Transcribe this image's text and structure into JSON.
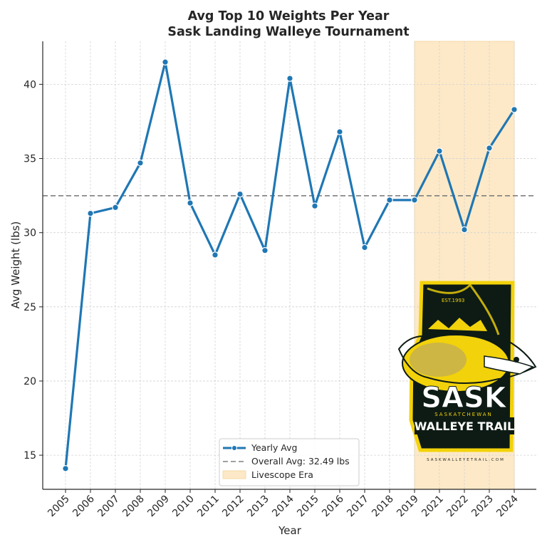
{
  "chart_data": {
    "type": "line",
    "title_line1": "Avg Top 10 Weights Per Year",
    "title_line2": "Sask Landing Walleye Tournament",
    "xlabel": "Year",
    "ylabel": "Avg Weight (lbs)",
    "categories": [
      "2005",
      "2006",
      "2007",
      "2008",
      "2009",
      "2010",
      "2011",
      "2012",
      "2013",
      "2014",
      "2015",
      "2016",
      "2017",
      "2018",
      "2019",
      "2021",
      "2022",
      "2023",
      "2024"
    ],
    "series": [
      {
        "name": "Yearly Avg",
        "color": "#1f77b4",
        "values": [
          14.1,
          31.3,
          31.7,
          34.7,
          41.5,
          32.0,
          28.5,
          32.6,
          28.8,
          40.4,
          31.8,
          36.8,
          29.0,
          32.2,
          32.2,
          35.5,
          30.2,
          35.7,
          38.3
        ]
      }
    ],
    "reference_line": {
      "label": "Overall Avg: 32.49 lbs",
      "value": 32.49,
      "color": "#808080",
      "style": "dashed"
    },
    "shaded_region": {
      "label": "Livescope Era",
      "from": "2019",
      "to": "2024",
      "color": "#fde9c7"
    },
    "yticks": [
      15,
      20,
      25,
      30,
      35,
      40
    ],
    "ylim": [
      12.7,
      42.9
    ],
    "grid": true,
    "legend_placement": "lower-center"
  },
  "logo": {
    "est": "EST.1993",
    "word1": "SASK",
    "word2": "SASKATCHEWAN",
    "word3": "WALLEYE TRAIL",
    "url": "SASKWALLEYETRAIL.COM"
  }
}
